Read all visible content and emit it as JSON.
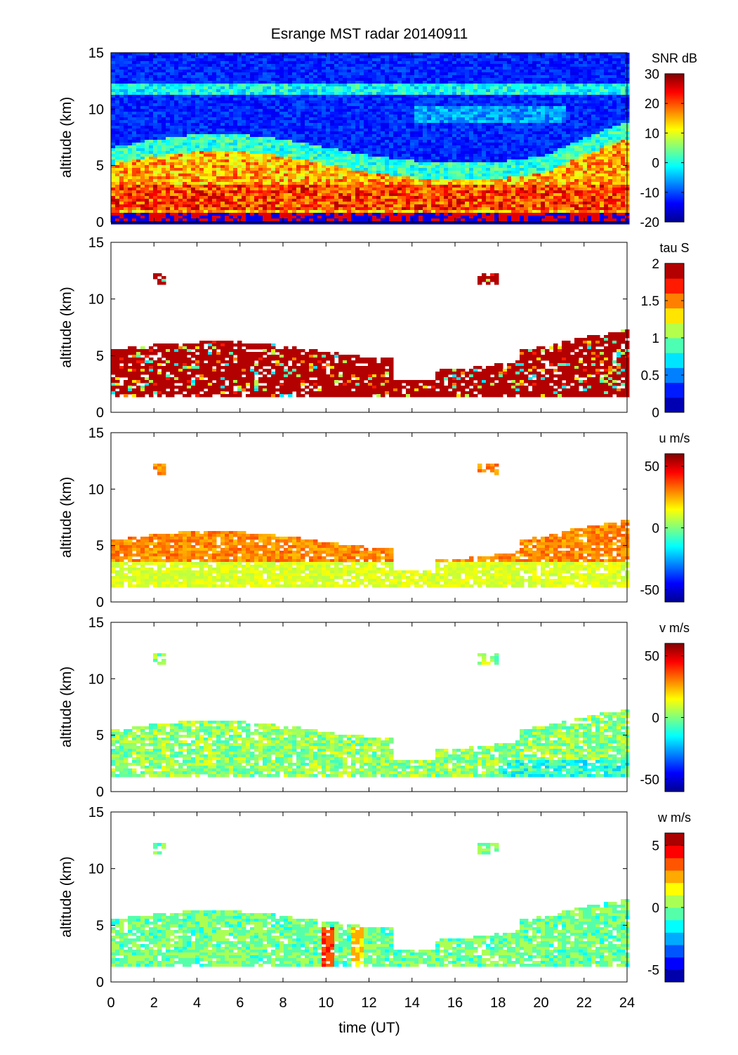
{
  "title": "Esrange MST radar 20140911",
  "xlabel": "time (UT)",
  "x_ticks": [
    0,
    2,
    4,
    6,
    8,
    10,
    12,
    14,
    16,
    18,
    20,
    22,
    24
  ],
  "y_ticks": [
    0,
    5,
    10,
    15
  ],
  "chart_data": [
    {
      "type": "heatmap",
      "title": "Esrange MST radar 20140911",
      "xlabel": "",
      "ylabel": "altitude (km)",
      "xlim": [
        0,
        24
      ],
      "ylim": [
        0,
        15
      ],
      "colorbar_label": "SNR dB",
      "colorbar_range": [
        -20,
        30
      ],
      "colorbar_ticks": [
        30,
        20,
        10,
        0,
        -10,
        -20
      ],
      "colormap": "jet",
      "description_values": {
        "background_snr_db": -15,
        "layers": [
          {
            "name": "lower troposphere band",
            "alt_km": [
              1.5,
              5.5
            ],
            "snr_db": [
              10,
              28
            ]
          },
          {
            "name": "upper layer",
            "alt_km": [
              11.5,
              12.2
            ],
            "snr_db": [
              0,
              5
            ]
          },
          {
            "name": "ground clutter",
            "alt_km": [
              0.3,
              1.0
            ],
            "snr_db": [
              -15,
              30
            ]
          }
        ]
      }
    },
    {
      "type": "heatmap",
      "xlabel": "",
      "ylabel": "altitude (km)",
      "xlim": [
        0,
        24
      ],
      "ylim": [
        0,
        15
      ],
      "colorbar_label": "tau S",
      "colorbar_range": [
        0,
        2
      ],
      "colorbar_ticks": [
        2,
        1.5,
        1,
        0.5,
        0
      ],
      "colorbar_levels": 10,
      "colormap": "jet (discrete)",
      "description_values": {
        "typical_tau_s": 2.0,
        "cloud_alt_km": [
          1.5,
          6.5
        ]
      }
    },
    {
      "type": "heatmap",
      "xlabel": "",
      "ylabel": "altitude (km)",
      "xlim": [
        0,
        24
      ],
      "ylim": [
        0,
        15
      ],
      "colorbar_label": "u m/s",
      "colorbar_range": [
        -60,
        60
      ],
      "colorbar_ticks": [
        50,
        0,
        -50
      ],
      "colormap": "jet",
      "description_values": {
        "upper_band_u_ms": [
          25,
          35
        ],
        "lower_band_u_ms": [
          5,
          15
        ]
      }
    },
    {
      "type": "heatmap",
      "xlabel": "",
      "ylabel": "altitude (km)",
      "xlim": [
        0,
        24
      ],
      "ylim": [
        0,
        15
      ],
      "colorbar_label": "v m/s",
      "colorbar_range": [
        -60,
        60
      ],
      "colorbar_ticks": [
        50,
        0,
        -50
      ],
      "colormap": "jet",
      "description_values": {
        "v_ms": [
          -15,
          20
        ]
      }
    },
    {
      "type": "heatmap",
      "xlabel": "time (UT)",
      "ylabel": "altitude (km)",
      "xlim": [
        0,
        24
      ],
      "ylim": [
        0,
        15
      ],
      "colorbar_label": "w m/s",
      "colorbar_range": [
        -6,
        6
      ],
      "colorbar_ticks": [
        5,
        0,
        -5
      ],
      "colorbar_levels": 12,
      "colormap": "jet (discrete)",
      "description_values": {
        "w_ms": [
          -1.5,
          1.5
        ],
        "updraft_near_10UT_ms": 4
      }
    }
  ]
}
